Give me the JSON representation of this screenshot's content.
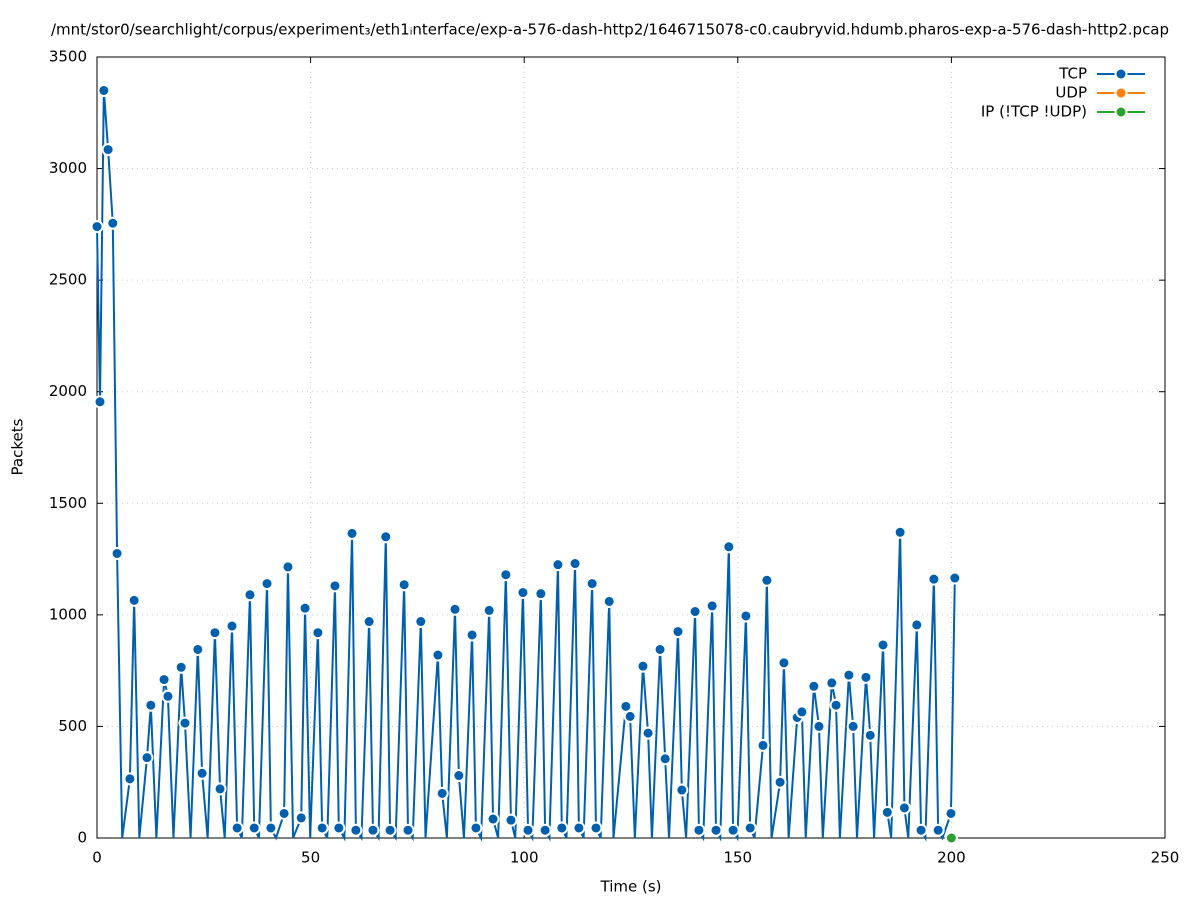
{
  "chart_data": {
    "type": "line",
    "title": "/mnt/stor0/searchlight/corpus/experiment₃/eth1ᵢnterface/exp-a-576-dash-http2/1646715078-c0.caubryvid.hdumb.pharos-exp-a-576-dash-http2.pcap",
    "x_label": "Time (s)",
    "y_label": "Packets",
    "xlim": [
      0,
      250
    ],
    "xticks": [
      0,
      50,
      100,
      150,
      200,
      250
    ],
    "ylim": [
      0,
      3500
    ],
    "yticks": [
      0,
      500,
      1000,
      1500,
      2000,
      2500,
      3000,
      3500
    ],
    "grid": true,
    "legend": "top-right",
    "series": [
      {
        "name": "TCP",
        "color": "#0060ad",
        "x": [
          0,
          0.7,
          1.6,
          2.6,
          3.7,
          4.7,
          5.9,
          7.7,
          8.7,
          9.9,
          11.7,
          12.6,
          13.9,
          15.7,
          16.6,
          17.9,
          19.7,
          20.6,
          21.9,
          23.6,
          24.6,
          25.9,
          27.6,
          28.8,
          29.9,
          31.6,
          32.8,
          33.9,
          35.8,
          36.8,
          37.9,
          39.8,
          40.7,
          41.9,
          43.8,
          44.7,
          45.9,
          47.8,
          48.7,
          49.9,
          51.7,
          52.7,
          53.9,
          55.7,
          56.6,
          57.9,
          59.7,
          60.6,
          61.9,
          63.7,
          64.6,
          65.9,
          67.6,
          68.6,
          69.9,
          71.9,
          72.8,
          73.9,
          75.8,
          76.9,
          79.8,
          80.8,
          81.9,
          83.8,
          84.7,
          85.9,
          87.8,
          88.7,
          89.9,
          91.8,
          92.7,
          93.9,
          95.7,
          96.9,
          97.9,
          99.7,
          100.9,
          101.9,
          103.9,
          104.9,
          105.9,
          107.9,
          108.8,
          109.9,
          111.9,
          112.8,
          113.9,
          115.9,
          116.8,
          117.9,
          119.9,
          120.9,
          123.8,
          124.8,
          125.9,
          127.8,
          129.0,
          129.9,
          131.8,
          133.0,
          133.9,
          136.0,
          136.9,
          137.9,
          140.0,
          140.9,
          141.9,
          144.0,
          144.9,
          145.9,
          147.9,
          148.9,
          149.9,
          151.9,
          152.9,
          153.9,
          155.9,
          156.8,
          157.9,
          159.9,
          160.8,
          161.9,
          163.9,
          165.0,
          165.9,
          167.8,
          169.0,
          169.9,
          172.0,
          173.0,
          173.9,
          176.0,
          177.0,
          177.9,
          180.0,
          181.0,
          181.9,
          184.0,
          185.0,
          185.9,
          188.0,
          189.0,
          189.9,
          191.9,
          192.9,
          193.9,
          195.9,
          196.9,
          197.9,
          199.9,
          200.8
        ],
        "values": [
          2740,
          1955,
          3350,
          3085,
          2755,
          1275,
          0,
          265,
          1065,
          0,
          360,
          595,
          0,
          710,
          635,
          0,
          765,
          515,
          0,
          845,
          290,
          0,
          920,
          220,
          0,
          950,
          45,
          0,
          1090,
          45,
          0,
          1140,
          45,
          0,
          110,
          1215,
          0,
          90,
          1030,
          0,
          920,
          45,
          0,
          1130,
          45,
          0,
          1365,
          35,
          0,
          970,
          35,
          0,
          1350,
          35,
          0,
          1135,
          35,
          0,
          970,
          0,
          820,
          200,
          0,
          1025,
          280,
          0,
          910,
          45,
          0,
          1020,
          85,
          0,
          1180,
          80,
          0,
          1100,
          35,
          0,
          1095,
          35,
          0,
          1225,
          45,
          0,
          1230,
          45,
          0,
          1140,
          45,
          0,
          1060,
          0,
          590,
          545,
          0,
          770,
          470,
          0,
          845,
          355,
          0,
          925,
          215,
          0,
          1015,
          35,
          0,
          1040,
          35,
          0,
          1305,
          35,
          0,
          995,
          45,
          0,
          415,
          1155,
          0,
          250,
          785,
          0,
          540,
          565,
          0,
          680,
          500,
          0,
          695,
          595,
          0,
          730,
          500,
          0,
          720,
          460,
          0,
          865,
          115,
          0,
          1370,
          135,
          0,
          955,
          35,
          0,
          1160,
          35,
          0,
          110,
          1165
        ]
      },
      {
        "name": "UDP",
        "color": "#ff7f0e",
        "x": [
          200
        ],
        "values": [
          0
        ]
      },
      {
        "name": "IP (!TCP  !UDP)",
        "color": "#2ca02c",
        "x": [
          200
        ],
        "values": [
          0
        ]
      }
    ]
  }
}
